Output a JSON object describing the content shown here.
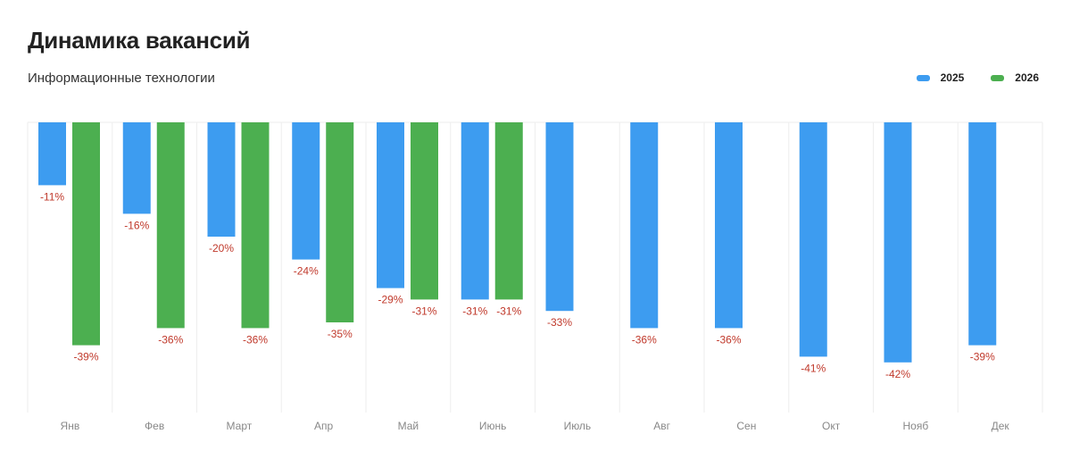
{
  "header": {
    "title": "Динамика вакансий",
    "subtitle": "Информационные технологии"
  },
  "colors": {
    "s2025": "#3d9cf0",
    "s2026": "#4caf50",
    "label": "#c0392b",
    "category": "#888888",
    "grid": "#eeeeee"
  },
  "chart_data": {
    "type": "bar",
    "title": "Динамика вакансий",
    "subtitle": "Информационные технологии",
    "categories": [
      "Янв",
      "Фев",
      "Март",
      "Апр",
      "Май",
      "Июнь",
      "Июль",
      "Авг",
      "Сен",
      "Окт",
      "Нояб",
      "Дек"
    ],
    "series": [
      {
        "name": "2025",
        "values": [
          -11,
          -16,
          -20,
          -24,
          -29,
          -31,
          -33,
          -36,
          -36,
          -41,
          -42,
          -39
        ]
      },
      {
        "name": "2026",
        "values": [
          -39,
          -36,
          -36,
          -35,
          -31,
          -31,
          null,
          null,
          null,
          null,
          null,
          null
        ]
      }
    ],
    "data_labels": {
      "2025": [
        "-11%",
        "-16%",
        "-20%",
        "-24%",
        "-29%",
        "-31%",
        "-33%",
        "-36%",
        "-36%",
        "-41%",
        "-42%",
        "-39%"
      ],
      "2026": [
        "-39%",
        "-36%",
        "-36%",
        "-35%",
        "-31%",
        "-31%",
        "",
        "",
        "",
        "",
        "",
        ""
      ]
    },
    "ylim": [
      -50,
      0
    ],
    "grid": "vertical",
    "legend_position": "top-right",
    "unit": "%"
  }
}
